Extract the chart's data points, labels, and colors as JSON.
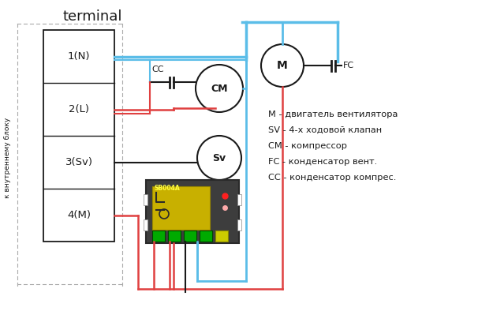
{
  "title": "terminal",
  "side_label": "к внутреннему блоку",
  "terminal_labels": [
    "1(N)",
    "2(L)",
    "3(Sv)",
    "4(M)"
  ],
  "legend_items": [
    "М - двигатель вентилятора",
    "SV - 4-х ходовой клапан",
    "СМ - компрессор",
    "FC - конденсатор вент.",
    "СС - конденсатор компрес."
  ],
  "blue_color": "#5bbde8",
  "red_color": "#e04040",
  "black_color": "#1a1a1a",
  "background": "#ffffff"
}
